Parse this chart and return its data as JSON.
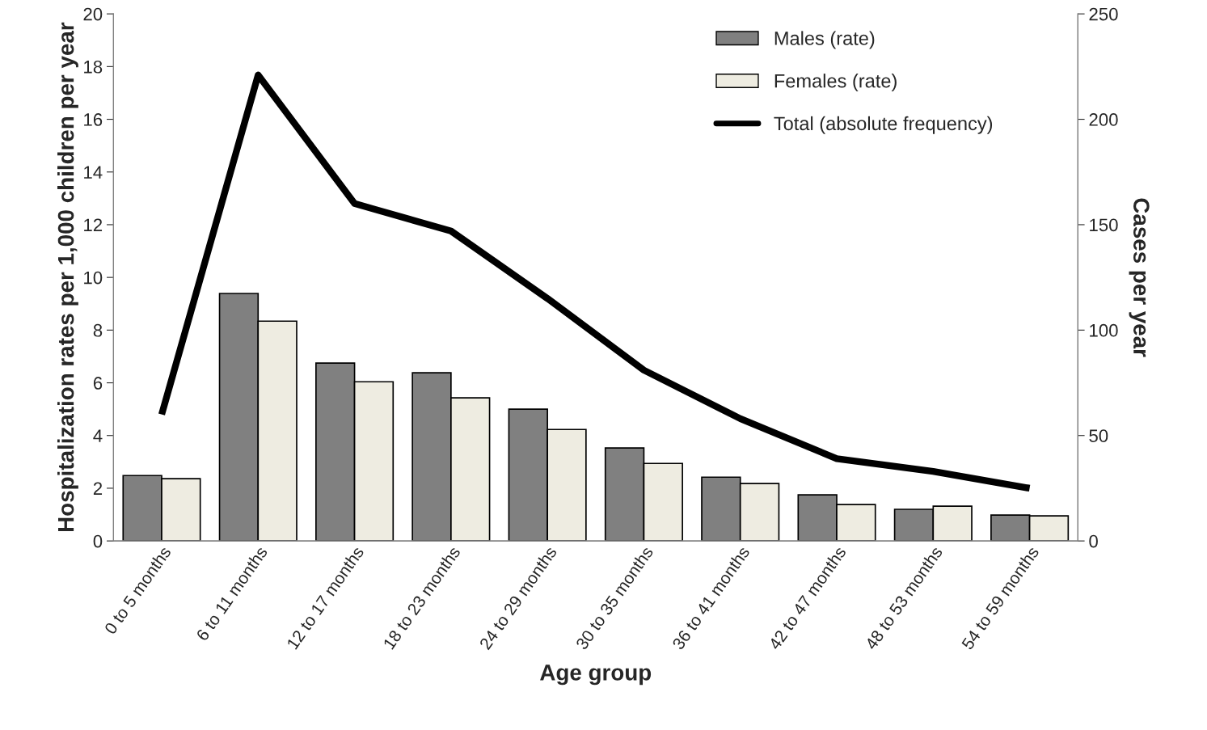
{
  "chart_data": {
    "type": "bar",
    "xlabel": "Age group",
    "ylabel": "Hospitalization rates per 1,000 children per year",
    "y2label": "Cases per year",
    "categories": [
      "0 to 5 months",
      "6 to 11 months",
      "12 to 17 months",
      "18 to 23 months",
      "24 to 29 months",
      "30 to 35 months",
      "36 to 41 months",
      "42 to 47 months",
      "48 to 53 months",
      "54 to 59 months"
    ],
    "series": [
      {
        "name": "Males (rate)",
        "color": "#808080",
        "values": [
          2.48,
          9.39,
          6.75,
          6.38,
          5.0,
          3.53,
          2.42,
          1.75,
          1.2,
          0.98
        ]
      },
      {
        "name": "Females (rate)",
        "color": "#eeece1",
        "values": [
          2.36,
          8.34,
          6.04,
          5.43,
          4.23,
          2.94,
          2.18,
          1.38,
          1.32,
          0.95
        ]
      },
      {
        "name": "Total (absolute frequency)",
        "type": "line",
        "axis": "y2",
        "color": "#000000",
        "values": [
          60,
          221,
          160,
          147,
          115,
          81,
          58,
          39,
          33,
          25
        ]
      }
    ],
    "ylim": [
      0,
      20
    ],
    "yticks": [
      0,
      2,
      4,
      6,
      8,
      10,
      12,
      14,
      16,
      18,
      20
    ],
    "y2lim": [
      0,
      250
    ],
    "y2ticks": [
      0,
      50,
      100,
      150,
      200,
      250
    ],
    "grid": false,
    "legend": "top right",
    "marker": "none",
    "line_style": "solid"
  }
}
